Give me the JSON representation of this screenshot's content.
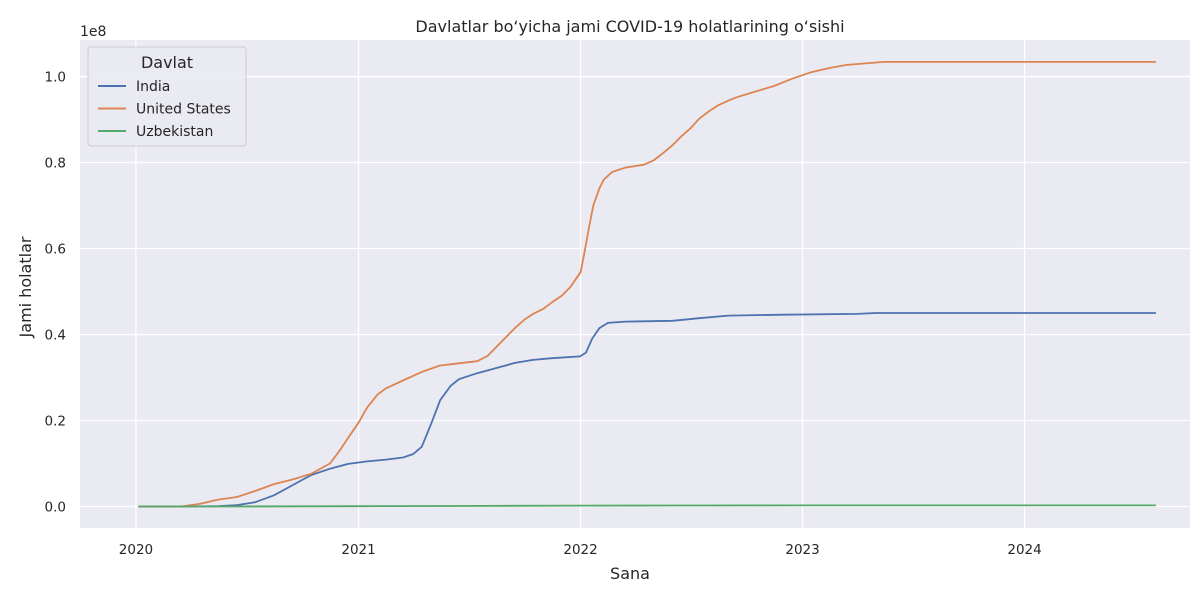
{
  "chart_data": {
    "type": "line",
    "title": "Davlatlar bo‘yicha jami COVID-19 holatlarining o‘sishi",
    "xlabel": "Sana",
    "ylabel": "Jami holatlar",
    "y_scale_label": "1e8",
    "x_ticks": [
      "2020",
      "2021",
      "2022",
      "2023",
      "2024"
    ],
    "y_ticks": [
      "0.0",
      "0.2",
      "0.4",
      "0.6",
      "0.8",
      "1.0"
    ],
    "xlim": [
      "2019-10-01",
      "2024-09-29"
    ],
    "ylim": [
      -5000000,
      108500000
    ],
    "grid": true,
    "legend_title": "Davlat",
    "legend_position": "top-left",
    "background": "#eaeaf2",
    "series": [
      {
        "name": "India",
        "color": "#4c72b0",
        "points": [
          [
            "2020-01-05",
            0
          ],
          [
            "2020-03-15",
            0
          ],
          [
            "2020-05-15",
            100000
          ],
          [
            "2020-06-15",
            300000
          ],
          [
            "2020-07-15",
            1000000
          ],
          [
            "2020-08-15",
            2600000
          ],
          [
            "2020-09-15",
            5000000
          ],
          [
            "2020-10-15",
            7300000
          ],
          [
            "2020-11-15",
            8800000
          ],
          [
            "2020-12-15",
            9900000
          ],
          [
            "2021-01-15",
            10500000
          ],
          [
            "2021-02-15",
            10900000
          ],
          [
            "2021-03-15",
            11400000
          ],
          [
            "2021-04-01",
            12200000
          ],
          [
            "2021-04-15",
            13900000
          ],
          [
            "2021-05-01",
            19500000
          ],
          [
            "2021-05-15",
            24700000
          ],
          [
            "2021-06-01",
            28000000
          ],
          [
            "2021-06-15",
            29600000
          ],
          [
            "2021-07-15",
            31000000
          ],
          [
            "2021-08-15",
            32200000
          ],
          [
            "2021-09-15",
            33400000
          ],
          [
            "2021-10-15",
            34100000
          ],
          [
            "2021-11-15",
            34500000
          ],
          [
            "2021-12-31",
            34900000
          ],
          [
            "2022-01-10",
            35800000
          ],
          [
            "2022-01-20",
            39000000
          ],
          [
            "2022-02-01",
            41500000
          ],
          [
            "2022-02-15",
            42700000
          ],
          [
            "2022-03-15",
            43000000
          ],
          [
            "2022-06-01",
            43200000
          ],
          [
            "2022-07-15",
            43800000
          ],
          [
            "2022-09-01",
            44400000
          ],
          [
            "2022-12-01",
            44600000
          ],
          [
            "2023-04-01",
            44800000
          ],
          [
            "2023-05-01",
            45000000
          ],
          [
            "2024-08-04",
            45000000
          ]
        ]
      },
      {
        "name": "United States",
        "color": "#dd8452",
        "points": [
          [
            "2020-01-05",
            0
          ],
          [
            "2020-03-15",
            0
          ],
          [
            "2020-04-15",
            600000
          ],
          [
            "2020-05-15",
            1600000
          ],
          [
            "2020-06-15",
            2200000
          ],
          [
            "2020-07-15",
            3600000
          ],
          [
            "2020-08-15",
            5200000
          ],
          [
            "2020-09-15",
            6300000
          ],
          [
            "2020-10-15",
            7600000
          ],
          [
            "2020-11-15",
            10000000
          ],
          [
            "2020-12-01",
            13000000
          ],
          [
            "2020-12-15",
            16000000
          ],
          [
            "2021-01-01",
            19500000
          ],
          [
            "2021-01-15",
            23000000
          ],
          [
            "2021-02-01",
            26000000
          ],
          [
            "2021-02-15",
            27500000
          ],
          [
            "2021-03-15",
            29300000
          ],
          [
            "2021-04-15",
            31300000
          ],
          [
            "2021-05-15",
            32800000
          ],
          [
            "2021-06-15",
            33300000
          ],
          [
            "2021-07-15",
            33800000
          ],
          [
            "2021-08-01",
            35000000
          ],
          [
            "2021-08-15",
            37000000
          ],
          [
            "2021-09-01",
            39500000
          ],
          [
            "2021-09-15",
            41500000
          ],
          [
            "2021-10-01",
            43500000
          ],
          [
            "2021-10-15",
            44800000
          ],
          [
            "2021-11-01",
            46000000
          ],
          [
            "2021-11-15",
            47500000
          ],
          [
            "2021-12-01",
            49000000
          ],
          [
            "2021-12-15",
            51000000
          ],
          [
            "2022-01-01",
            54500000
          ],
          [
            "2022-01-08",
            59500000
          ],
          [
            "2022-01-15",
            65000000
          ],
          [
            "2022-01-22",
            70000000
          ],
          [
            "2022-02-01",
            74000000
          ],
          [
            "2022-02-08",
            76000000
          ],
          [
            "2022-02-22",
            77800000
          ],
          [
            "2022-03-15",
            78800000
          ],
          [
            "2022-04-15",
            79500000
          ],
          [
            "2022-05-01",
            80500000
          ],
          [
            "2022-05-15",
            82000000
          ],
          [
            "2022-06-01",
            84000000
          ],
          [
            "2022-06-15",
            86000000
          ],
          [
            "2022-07-01",
            88000000
          ],
          [
            "2022-07-15",
            90200000
          ],
          [
            "2022-08-01",
            92000000
          ],
          [
            "2022-08-15",
            93300000
          ],
          [
            "2022-09-01",
            94400000
          ],
          [
            "2022-09-15",
            95200000
          ],
          [
            "2022-10-15",
            96500000
          ],
          [
            "2022-11-15",
            97800000
          ],
          [
            "2022-12-15",
            99500000
          ],
          [
            "2023-01-15",
            101000000
          ],
          [
            "2023-02-15",
            102000000
          ],
          [
            "2023-03-15",
            102700000
          ],
          [
            "2023-05-15",
            103400000
          ],
          [
            "2024-08-04",
            103400000
          ]
        ]
      },
      {
        "name": "Uzbekistan",
        "color": "#55a868",
        "points": [
          [
            "2020-01-05",
            0
          ],
          [
            "2020-06-01",
            10000
          ],
          [
            "2021-01-01",
            80000
          ],
          [
            "2021-06-01",
            110000
          ],
          [
            "2022-01-01",
            200000
          ],
          [
            "2022-06-01",
            240000
          ],
          [
            "2023-01-01",
            250000
          ],
          [
            "2024-08-04",
            250000
          ]
        ]
      }
    ]
  }
}
